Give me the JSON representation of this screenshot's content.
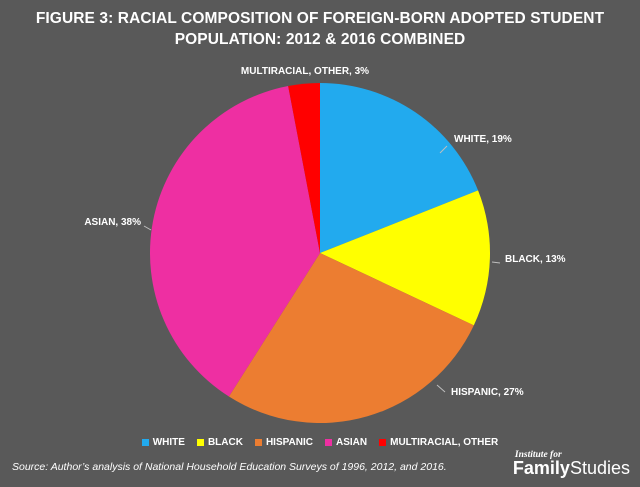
{
  "chart_data": {
    "type": "pie",
    "title": [
      "FIGURE 3: RACIAL COMPOSITION OF FOREIGN-BORN ADOPTED STUDENT",
      "POPULATION: 2012 & 2016 COMBINED"
    ],
    "start_angle": "12 o'clock, clockwise",
    "slices": [
      {
        "label": "WHITE",
        "value": 19,
        "data_label": "WHITE, 19%",
        "color": "#22aaee"
      },
      {
        "label": "BLACK",
        "value": 13,
        "data_label": "BLACK, 13%",
        "color": "#ffff00"
      },
      {
        "label": "HISPANIC",
        "value": 27,
        "data_label": "HISPANIC, 27%",
        "color": "#ec7d31"
      },
      {
        "label": "ASIAN",
        "value": 38,
        "data_label": "ASIAN, 38%",
        "color": "#ee2fa2"
      },
      {
        "label": "MULTIRACIAL, OTHER",
        "value": 3,
        "data_label": "MULTIRACIAL, OTHER, 3%",
        "color": "#ff0000"
      }
    ],
    "legend_placement": "bottom"
  },
  "source": "Source: Author’s  analysis of National Household Education Surveys of 1996, 2012, and 2016.",
  "logo": {
    "top": "Institute for",
    "bottom_1": "Family",
    "bottom_2": "Studies"
  }
}
